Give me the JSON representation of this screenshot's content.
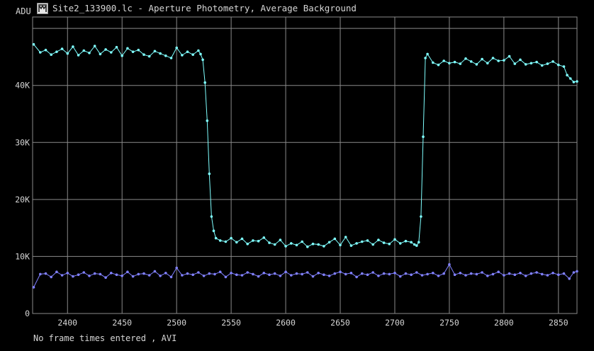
{
  "window": {
    "title": "Site2_133900.lc - Aperture Photometry, Average Background",
    "icon": "lightcurve-app-icon"
  },
  "footer": {
    "status": "No frame times entered , AVI"
  },
  "colors": {
    "background": "#000000",
    "grid": "#8a8a8a",
    "text": "#d6d6d6",
    "target": "#7fffff",
    "comparison": "#8080ff"
  },
  "chart_data": {
    "type": "line",
    "ylabel": "ADU",
    "xlabel": "",
    "title": "",
    "xlim": [
      2368,
      2867
    ],
    "ylim": [
      0,
      52000
    ],
    "x_ticks": [
      2400,
      2450,
      2500,
      2550,
      2600,
      2650,
      2700,
      2750,
      2800,
      2850
    ],
    "x_tick_labels": [
      "2400",
      "2450",
      "2500",
      "2550",
      "2600",
      "2650",
      "2700",
      "2750",
      "2800",
      "2850"
    ],
    "y_ticks": [
      0,
      10000,
      20000,
      30000,
      40000
    ],
    "y_tick_labels": [
      "0",
      "10K",
      "20K",
      "30K",
      "40K"
    ],
    "grid": true,
    "legend": "none",
    "series": [
      {
        "color": "#7fffff",
        "x": [
          2369,
          2375,
          2380,
          2385,
          2390,
          2395,
          2400,
          2405,
          2410,
          2415,
          2420,
          2425,
          2430,
          2435,
          2440,
          2445,
          2450,
          2455,
          2460,
          2465,
          2470,
          2475,
          2480,
          2485,
          2490,
          2495,
          2500,
          2505,
          2510,
          2515,
          2520,
          2522,
          2524,
          2526,
          2528,
          2530,
          2532,
          2534,
          2536,
          2540,
          2545,
          2550,
          2555,
          2560,
          2565,
          2570,
          2575,
          2580,
          2585,
          2590,
          2595,
          2600,
          2605,
          2610,
          2615,
          2620,
          2625,
          2630,
          2635,
          2640,
          2645,
          2650,
          2655,
          2660,
          2665,
          2670,
          2675,
          2680,
          2685,
          2690,
          2695,
          2700,
          2705,
          2710,
          2715,
          2718,
          2720,
          2722,
          2724,
          2726,
          2728,
          2730,
          2735,
          2740,
          2745,
          2750,
          2755,
          2760,
          2765,
          2770,
          2775,
          2780,
          2785,
          2790,
          2795,
          2800,
          2805,
          2810,
          2815,
          2820,
          2825,
          2830,
          2835,
          2840,
          2845,
          2850,
          2855,
          2858,
          2861,
          2864,
          2867
        ],
        "y": [
          47200,
          45800,
          46200,
          45400,
          45900,
          46400,
          45600,
          46800,
          45300,
          46100,
          45700,
          46900,
          45500,
          46300,
          45800,
          46700,
          45200,
          46500,
          45900,
          46200,
          45400,
          45100,
          46000,
          45600,
          45200,
          44800,
          46600,
          45300,
          45900,
          45400,
          46100,
          45500,
          44500,
          40500,
          33800,
          24500,
          17000,
          14500,
          13200,
          12800,
          12600,
          13200,
          12500,
          13100,
          12200,
          12800,
          12700,
          13300,
          12400,
          12100,
          12900,
          11800,
          12300,
          12000,
          12600,
          11700,
          12200,
          12100,
          11800,
          12500,
          13100,
          12000,
          13400,
          11900,
          12300,
          12600,
          12800,
          12100,
          12900,
          12400,
          12200,
          13000,
          12300,
          12700,
          12500,
          12100,
          11900,
          12500,
          17000,
          31000,
          44800,
          45500,
          44000,
          43600,
          44300,
          43900,
          44100,
          43800,
          44700,
          44200,
          43700,
          44600,
          43900,
          44800,
          44300,
          44400,
          45100,
          43800,
          44500,
          43700,
          43900,
          44100,
          43500,
          43800,
          44200,
          43600,
          43300,
          41800,
          41200,
          40600,
          40700
        ]
      },
      {
        "color": "#8080ff",
        "x": [
          2369,
          2375,
          2380,
          2385,
          2390,
          2395,
          2400,
          2405,
          2410,
          2415,
          2420,
          2425,
          2430,
          2435,
          2440,
          2445,
          2450,
          2455,
          2460,
          2465,
          2470,
          2475,
          2480,
          2485,
          2490,
          2495,
          2500,
          2505,
          2510,
          2515,
          2520,
          2525,
          2530,
          2535,
          2540,
          2545,
          2550,
          2555,
          2560,
          2565,
          2570,
          2575,
          2580,
          2585,
          2590,
          2595,
          2600,
          2605,
          2610,
          2615,
          2620,
          2625,
          2630,
          2635,
          2640,
          2645,
          2650,
          2655,
          2660,
          2665,
          2670,
          2675,
          2680,
          2685,
          2690,
          2695,
          2700,
          2705,
          2710,
          2715,
          2720,
          2725,
          2730,
          2735,
          2740,
          2745,
          2750,
          2755,
          2760,
          2765,
          2770,
          2775,
          2780,
          2785,
          2790,
          2795,
          2800,
          2805,
          2810,
          2815,
          2820,
          2825,
          2830,
          2835,
          2840,
          2845,
          2850,
          2855,
          2860,
          2864,
          2867
        ],
        "y": [
          4600,
          6900,
          7000,
          6400,
          7300,
          6700,
          7100,
          6500,
          6800,
          7200,
          6600,
          7000,
          6900,
          6300,
          7100,
          6800,
          6600,
          7300,
          6500,
          6900,
          7000,
          6700,
          7400,
          6600,
          7100,
          6400,
          8000,
          6700,
          7000,
          6800,
          7200,
          6600,
          7000,
          6900,
          7300,
          6400,
          7100,
          6800,
          6700,
          7200,
          6900,
          6500,
          7100,
          6800,
          7000,
          6600,
          7300,
          6700,
          7000,
          6900,
          7200,
          6500,
          7100,
          6800,
          6600,
          7000,
          7300,
          6900,
          7100,
          6400,
          7000,
          6800,
          7200,
          6600,
          7000,
          6900,
          7100,
          6500,
          7000,
          6800,
          7200,
          6700,
          6900,
          7100,
          6600,
          7000,
          8600,
          6800,
          7100,
          6700,
          7000,
          6900,
          7200,
          6600,
          6900,
          7300,
          6700,
          7000,
          6800,
          7100,
          6600,
          7000,
          7200,
          6900,
          6700,
          7100,
          6800,
          7000,
          6100,
          7200,
          7400
        ]
      }
    ]
  }
}
